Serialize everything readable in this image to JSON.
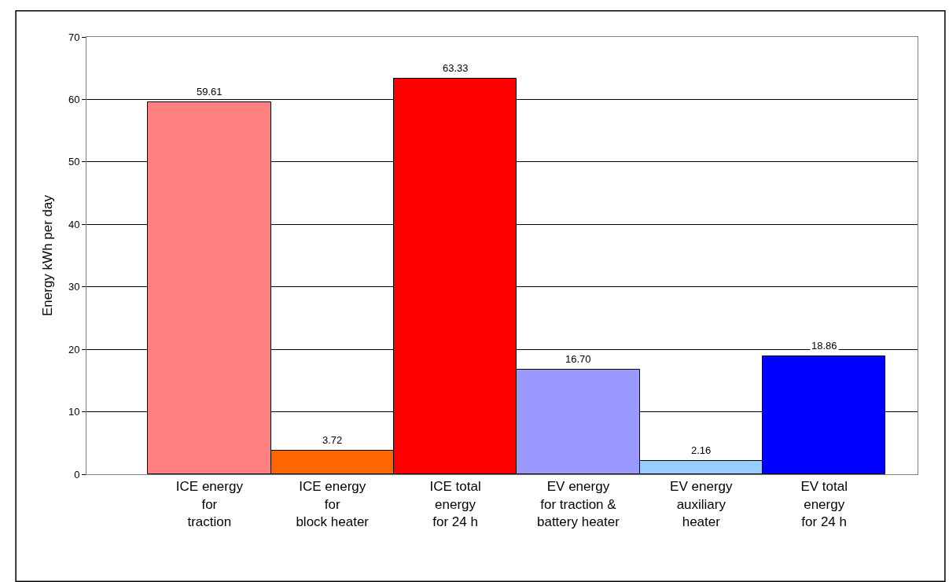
{
  "chart_data": {
    "type": "bar",
    "ylabel": "Energy kWh per day",
    "categories": [
      "ICE energy\nfor\ntraction",
      "ICE energy\nfor\nblock heater",
      "ICE total\nenergy\nfor 24 h",
      "EV energy\nfor traction &\nbattery heater",
      "EV energy\nauxiliary\nheater",
      "EV total\nenergy\nfor 24 h"
    ],
    "values": [
      59.61,
      3.72,
      63.33,
      16.7,
      2.16,
      18.86
    ],
    "colors": [
      "#ff8080",
      "#ff6600",
      "#ff0000",
      "#9999ff",
      "#99ccff",
      "#0000ff"
    ],
    "value_labels": [
      "59.61",
      "3.72",
      "63.33",
      "16.70",
      "2.16",
      "18.86"
    ],
    "ylim": [
      0,
      70
    ],
    "yticks": [
      0,
      10,
      20,
      30,
      40,
      50,
      60,
      70
    ],
    "grid": "y",
    "legend": false
  }
}
